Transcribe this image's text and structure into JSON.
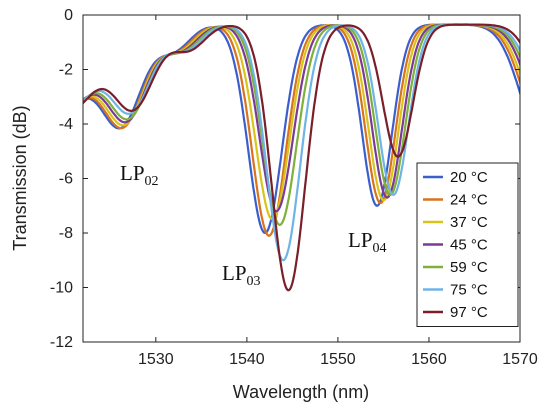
{
  "chart_data": {
    "type": "line",
    "title": "",
    "xlabel": "Wavelength (nm)",
    "ylabel": "Transmission (dB)",
    "xlim": [
      1522,
      1570
    ],
    "ylim": [
      -12,
      0
    ],
    "xticks": [
      1530,
      1540,
      1550,
      1560,
      1570
    ],
    "yticks": [
      0,
      -2,
      -4,
      -6,
      -8,
      -10,
      -12
    ],
    "grid": false,
    "legend_position": "bottom-right",
    "annotations": [
      {
        "main": "LP",
        "sub": "02"
      },
      {
        "main": "LP",
        "sub": "03"
      },
      {
        "main": "LP",
        "sub": "04"
      }
    ],
    "series": [
      {
        "name": "20 °C",
        "color": "#3a5fcd",
        "shift": 0.0,
        "depth3": -8.0,
        "depth4": -7.0,
        "depth2": -4.8
      },
      {
        "name": "24 °C",
        "color": "#d9731f",
        "shift": 0.45,
        "depth3": -8.1,
        "depth4": -6.9,
        "depth2": -4.8
      },
      {
        "name": "37 °C",
        "color": "#d8c41a",
        "shift": 0.85,
        "depth3": -7.5,
        "depth4": -6.8,
        "depth2": -4.7
      },
      {
        "name": "45 °C",
        "color": "#7a3a96",
        "shift": 1.3,
        "depth3": -7.2,
        "depth4": -6.7,
        "depth2": -4.6
      },
      {
        "name": "59 °C",
        "color": "#7fb03a",
        "shift": 1.7,
        "depth3": -7.7,
        "depth4": -6.6,
        "depth2": -4.5
      },
      {
        "name": "75 °C",
        "color": "#6fb4e6",
        "shift": 2.1,
        "depth3": -9.0,
        "depth4": -6.6,
        "depth2": -4.3
      },
      {
        "name": "97 °C",
        "color": "#7a1f2a",
        "shift": 2.7,
        "depth3": -10.1,
        "depth4": -5.2,
        "depth2": -4.2
      }
    ]
  }
}
